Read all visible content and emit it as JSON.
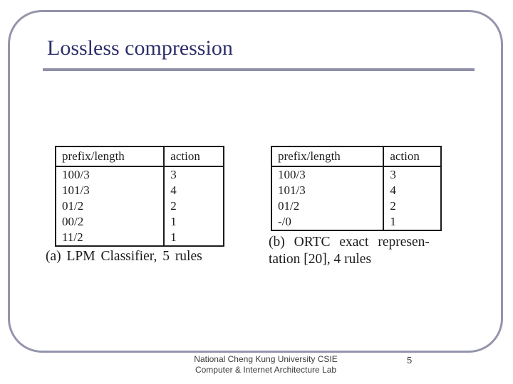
{
  "slide": {
    "title": "Lossless compression",
    "page_number": "5",
    "footer_line1": "National Cheng Kung University CSIE",
    "footer_line2": "Computer & Internet Architecture Lab"
  },
  "figure_a": {
    "caption": "(a) LPM Classifier, 5 rules",
    "table": {
      "headers": [
        "prefix/length",
        "action"
      ],
      "rows": [
        [
          "100/3",
          "3"
        ],
        [
          "101/3",
          "4"
        ],
        [
          "01/2",
          "2"
        ],
        [
          "00/2",
          "1"
        ],
        [
          "11/2",
          "1"
        ]
      ]
    }
  },
  "figure_b": {
    "caption_line1": "(b) ORTC exact represen-",
    "caption_line2": "tation [20], 4 rules",
    "table": {
      "headers": [
        "prefix/length",
        "action"
      ],
      "rows": [
        [
          "100/3",
          "3"
        ],
        [
          "101/3",
          "4"
        ],
        [
          "01/2",
          "2"
        ],
        [
          "-/0",
          "1"
        ]
      ]
    }
  },
  "colors": {
    "frame": "#9494ac",
    "title_rule": "#8f8fa9",
    "title_ink": "#2e2e6b",
    "table_ink": "#1c1c1c",
    "footer_ink": "#3a3a3a"
  }
}
